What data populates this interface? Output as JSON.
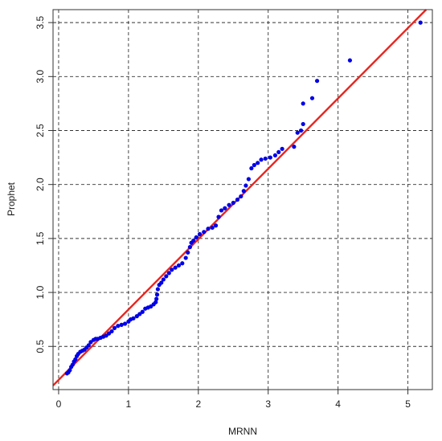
{
  "chart_data": {
    "type": "scatter",
    "title": "",
    "xlabel": "MRNN",
    "ylabel": "Prophet",
    "xlim": [
      -0.08,
      5.35
    ],
    "ylim": [
      0.1,
      3.62
    ],
    "xticks": [
      0,
      1,
      2,
      3,
      4,
      5
    ],
    "xtick_labels": [
      "0",
      "1",
      "2",
      "3",
      "4",
      "5"
    ],
    "yticks": [
      0.5,
      1.0,
      1.5,
      2.0,
      2.5,
      3.0,
      3.5
    ],
    "ytick_labels": [
      "0.5",
      "1.0",
      "1.5",
      "2.0",
      "2.5",
      "3.0",
      "3.5"
    ],
    "grid": true,
    "legend": "none",
    "point_color": "#0000e6",
    "line_color": "#e8251f",
    "reference_line": {
      "intercept": 0.19,
      "slope": 0.652
    },
    "points": [
      [
        0.12,
        0.25
      ],
      [
        0.14,
        0.26
      ],
      [
        0.16,
        0.28
      ],
      [
        0.18,
        0.31
      ],
      [
        0.2,
        0.33
      ],
      [
        0.22,
        0.36
      ],
      [
        0.24,
        0.38
      ],
      [
        0.26,
        0.41
      ],
      [
        0.28,
        0.43
      ],
      [
        0.31,
        0.45
      ],
      [
        0.34,
        0.46
      ],
      [
        0.37,
        0.47
      ],
      [
        0.4,
        0.49
      ],
      [
        0.43,
        0.51
      ],
      [
        0.46,
        0.54
      ],
      [
        0.5,
        0.56
      ],
      [
        0.53,
        0.57
      ],
      [
        0.56,
        0.57
      ],
      [
        0.6,
        0.58
      ],
      [
        0.64,
        0.59
      ],
      [
        0.68,
        0.6
      ],
      [
        0.72,
        0.62
      ],
      [
        0.76,
        0.64
      ],
      [
        0.8,
        0.67
      ],
      [
        0.85,
        0.69
      ],
      [
        0.9,
        0.7
      ],
      [
        0.95,
        0.71
      ],
      [
        1.0,
        0.73
      ],
      [
        1.03,
        0.75
      ],
      [
        1.07,
        0.76
      ],
      [
        1.12,
        0.78
      ],
      [
        1.16,
        0.8
      ],
      [
        1.2,
        0.82
      ],
      [
        1.24,
        0.85
      ],
      [
        1.28,
        0.86
      ],
      [
        1.32,
        0.87
      ],
      [
        1.36,
        0.89
      ],
      [
        1.39,
        0.91
      ],
      [
        1.4,
        0.94
      ],
      [
        1.41,
        0.98
      ],
      [
        1.42,
        1.03
      ],
      [
        1.44,
        1.07
      ],
      [
        1.47,
        1.09
      ],
      [
        1.5,
        1.12
      ],
      [
        1.54,
        1.15
      ],
      [
        1.58,
        1.18
      ],
      [
        1.62,
        1.21
      ],
      [
        1.67,
        1.23
      ],
      [
        1.72,
        1.25
      ],
      [
        1.77,
        1.27
      ],
      [
        1.82,
        1.32
      ],
      [
        1.85,
        1.37
      ],
      [
        1.88,
        1.42
      ],
      [
        1.9,
        1.46
      ],
      [
        1.93,
        1.48
      ],
      [
        1.97,
        1.51
      ],
      [
        2.02,
        1.54
      ],
      [
        2.08,
        1.56
      ],
      [
        2.14,
        1.59
      ],
      [
        2.2,
        1.6
      ],
      [
        2.25,
        1.62
      ],
      [
        2.29,
        1.7
      ],
      [
        2.33,
        1.76
      ],
      [
        2.38,
        1.78
      ],
      [
        2.44,
        1.81
      ],
      [
        2.5,
        1.83
      ],
      [
        2.56,
        1.86
      ],
      [
        2.61,
        1.89
      ],
      [
        2.65,
        1.94
      ],
      [
        2.68,
        1.99
      ],
      [
        2.72,
        2.05
      ],
      [
        2.76,
        2.15
      ],
      [
        2.8,
        2.18
      ],
      [
        2.85,
        2.2
      ],
      [
        2.9,
        2.23
      ],
      [
        2.96,
        2.24
      ],
      [
        3.03,
        2.25
      ],
      [
        3.1,
        2.27
      ],
      [
        3.15,
        2.3
      ],
      [
        3.2,
        2.33
      ],
      [
        3.37,
        2.35
      ],
      [
        3.42,
        2.48
      ],
      [
        3.47,
        2.5
      ],
      [
        3.5,
        2.56
      ],
      [
        3.5,
        2.75
      ],
      [
        3.63,
        2.8
      ],
      [
        3.7,
        2.96
      ],
      [
        4.17,
        3.15
      ],
      [
        5.18,
        3.5
      ]
    ]
  }
}
